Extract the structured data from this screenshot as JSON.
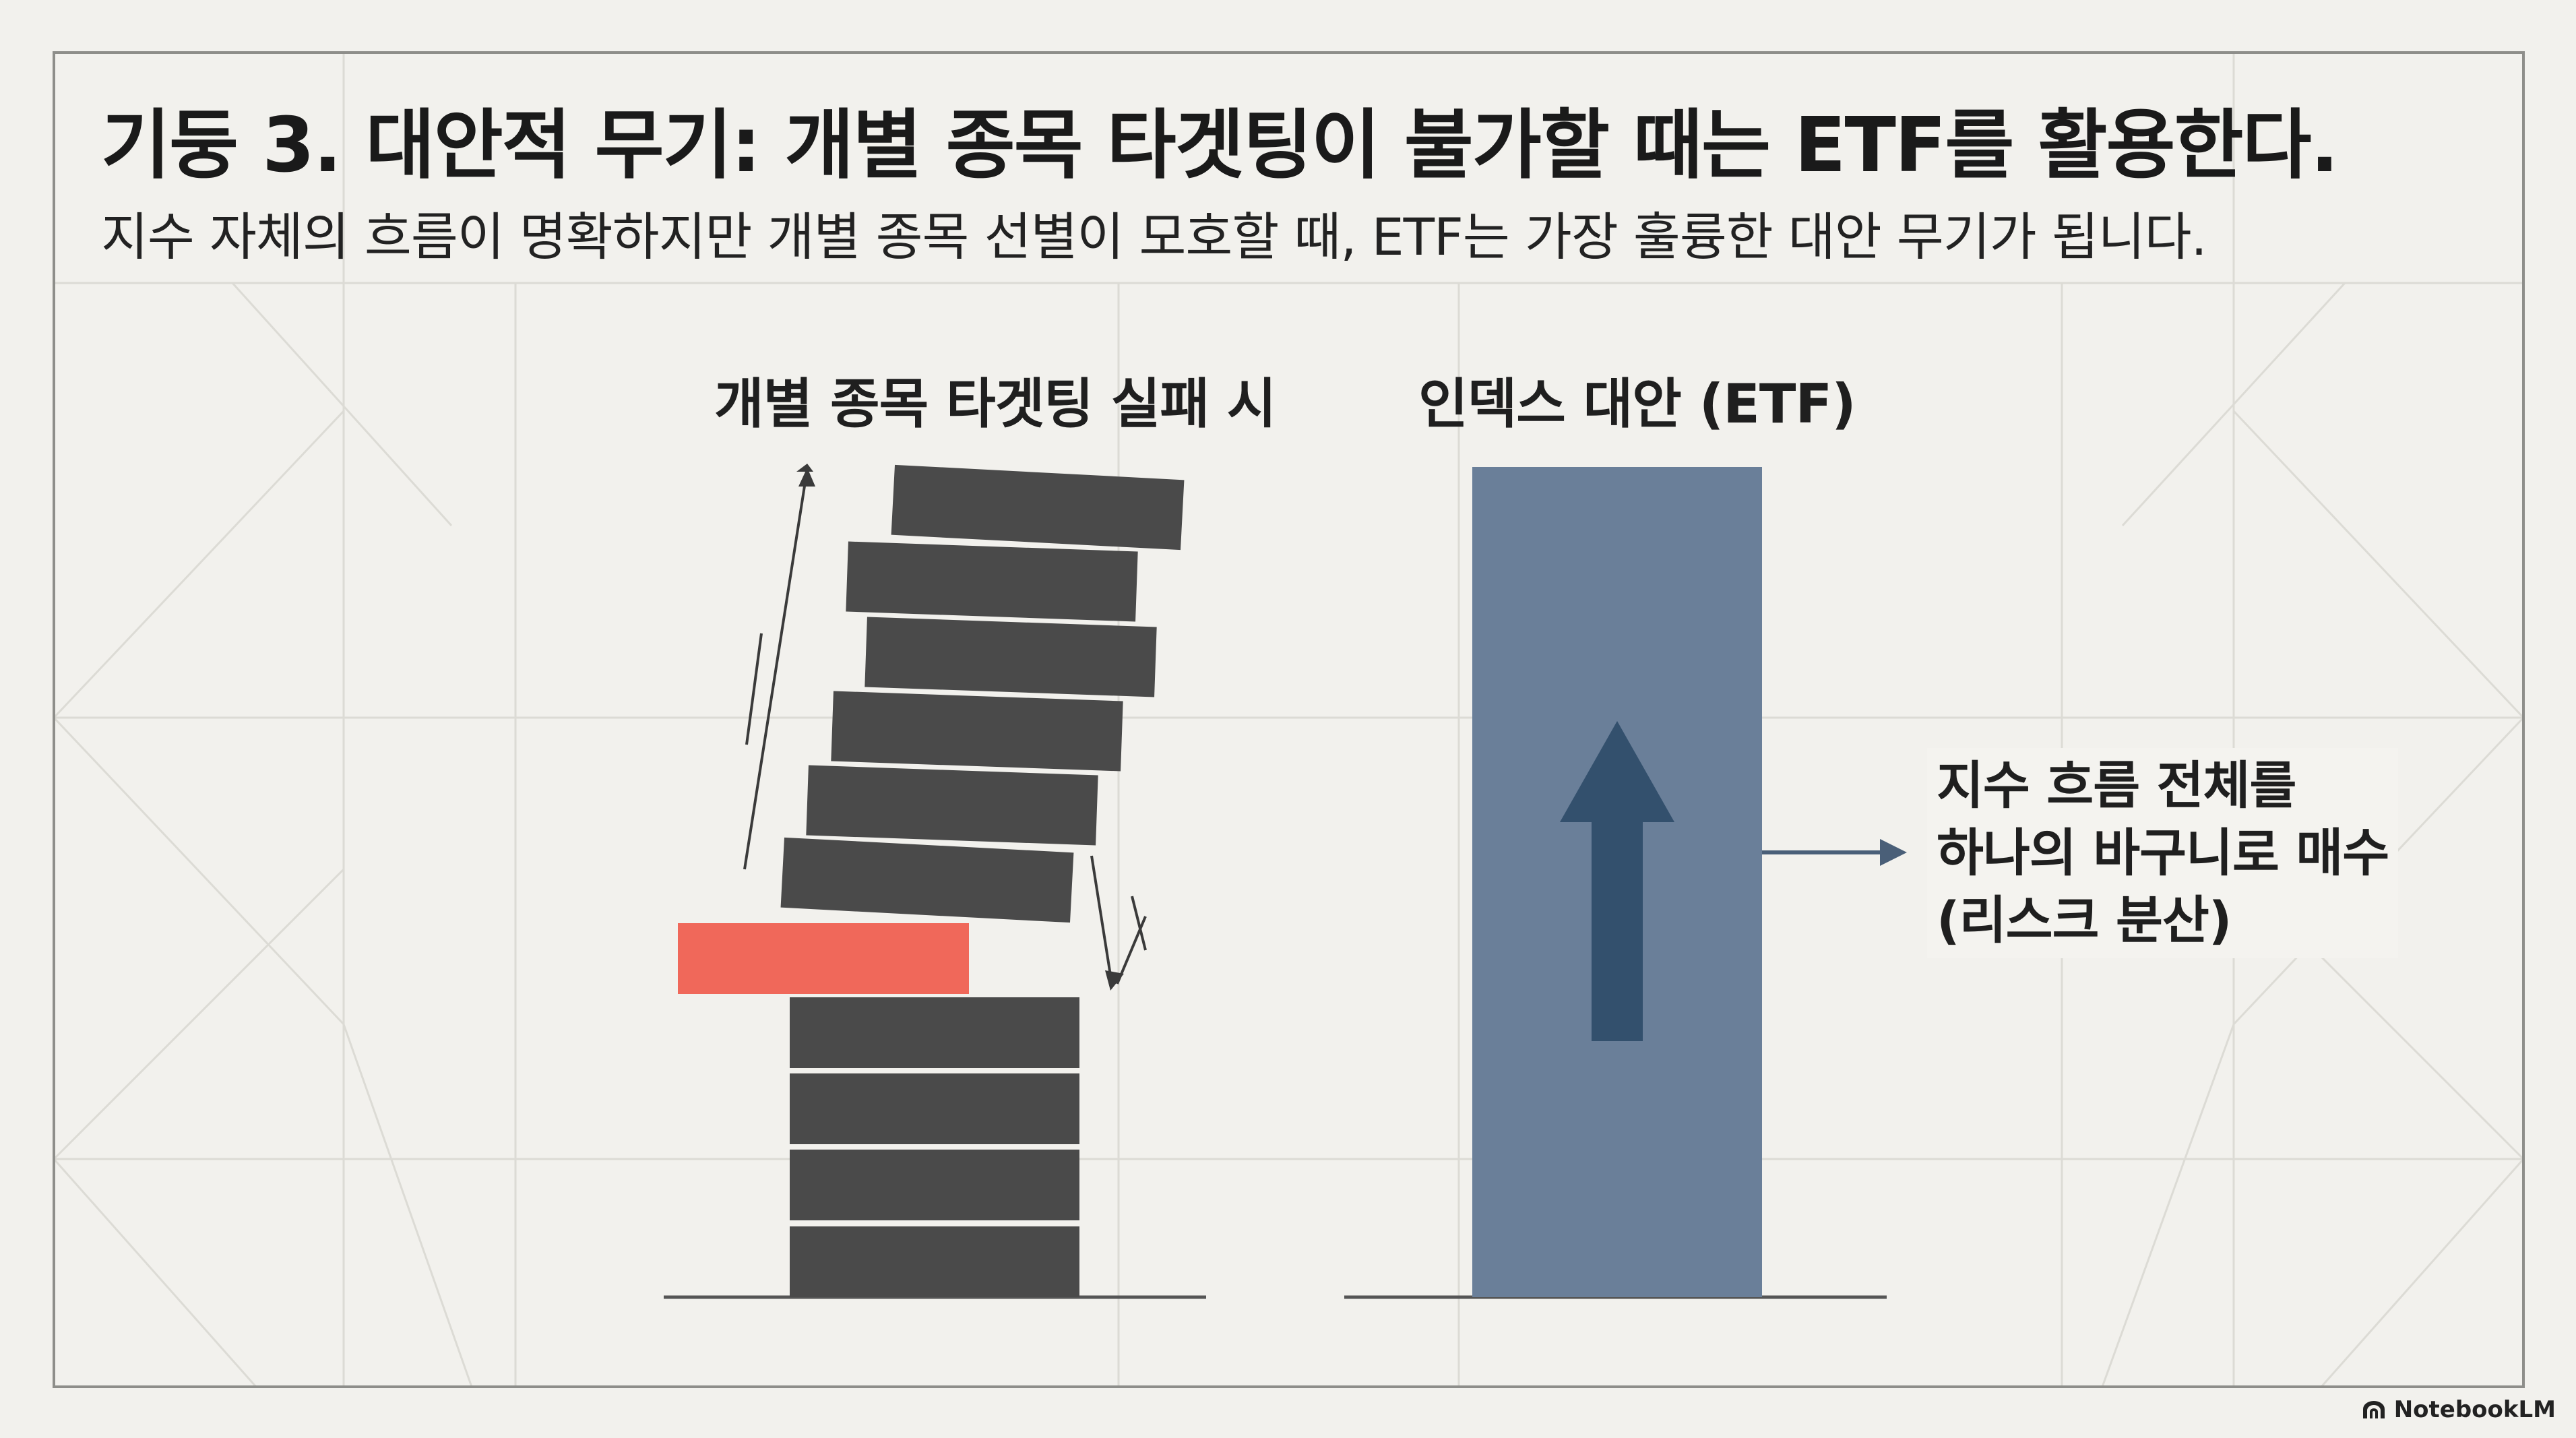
{
  "title": "기둥 3. 대안적 무기: 개별 종목 타겟팅이 불가할 때는 ETF를 활용한다.",
  "subtitle": "지수 자체의 흐름이 명확하지만 개별 종목 선별이 모호할 때, ETF는 가장 훌륭한 대안 무기가 됩니다.",
  "left_panel": {
    "heading": "개별 종목 타겟팅 실패 시"
  },
  "right_panel": {
    "heading": "인덱스 대안 (ETF)",
    "annotation_lines": [
      "지수 흐름 전체를",
      "하나의 바구니로 매수",
      "(리스크 분산)"
    ]
  },
  "brand": {
    "name": "NotebookLM",
    "icon": "notebooklm-logo-icon"
  },
  "colors": {
    "background": "#f2f1ed",
    "block_dark": "#4a4a4a",
    "block_red": "#f0685a",
    "etf_bar": "#6a7f99",
    "etf_arrow": "#33506d",
    "grid_line": "#d8d7d2"
  }
}
